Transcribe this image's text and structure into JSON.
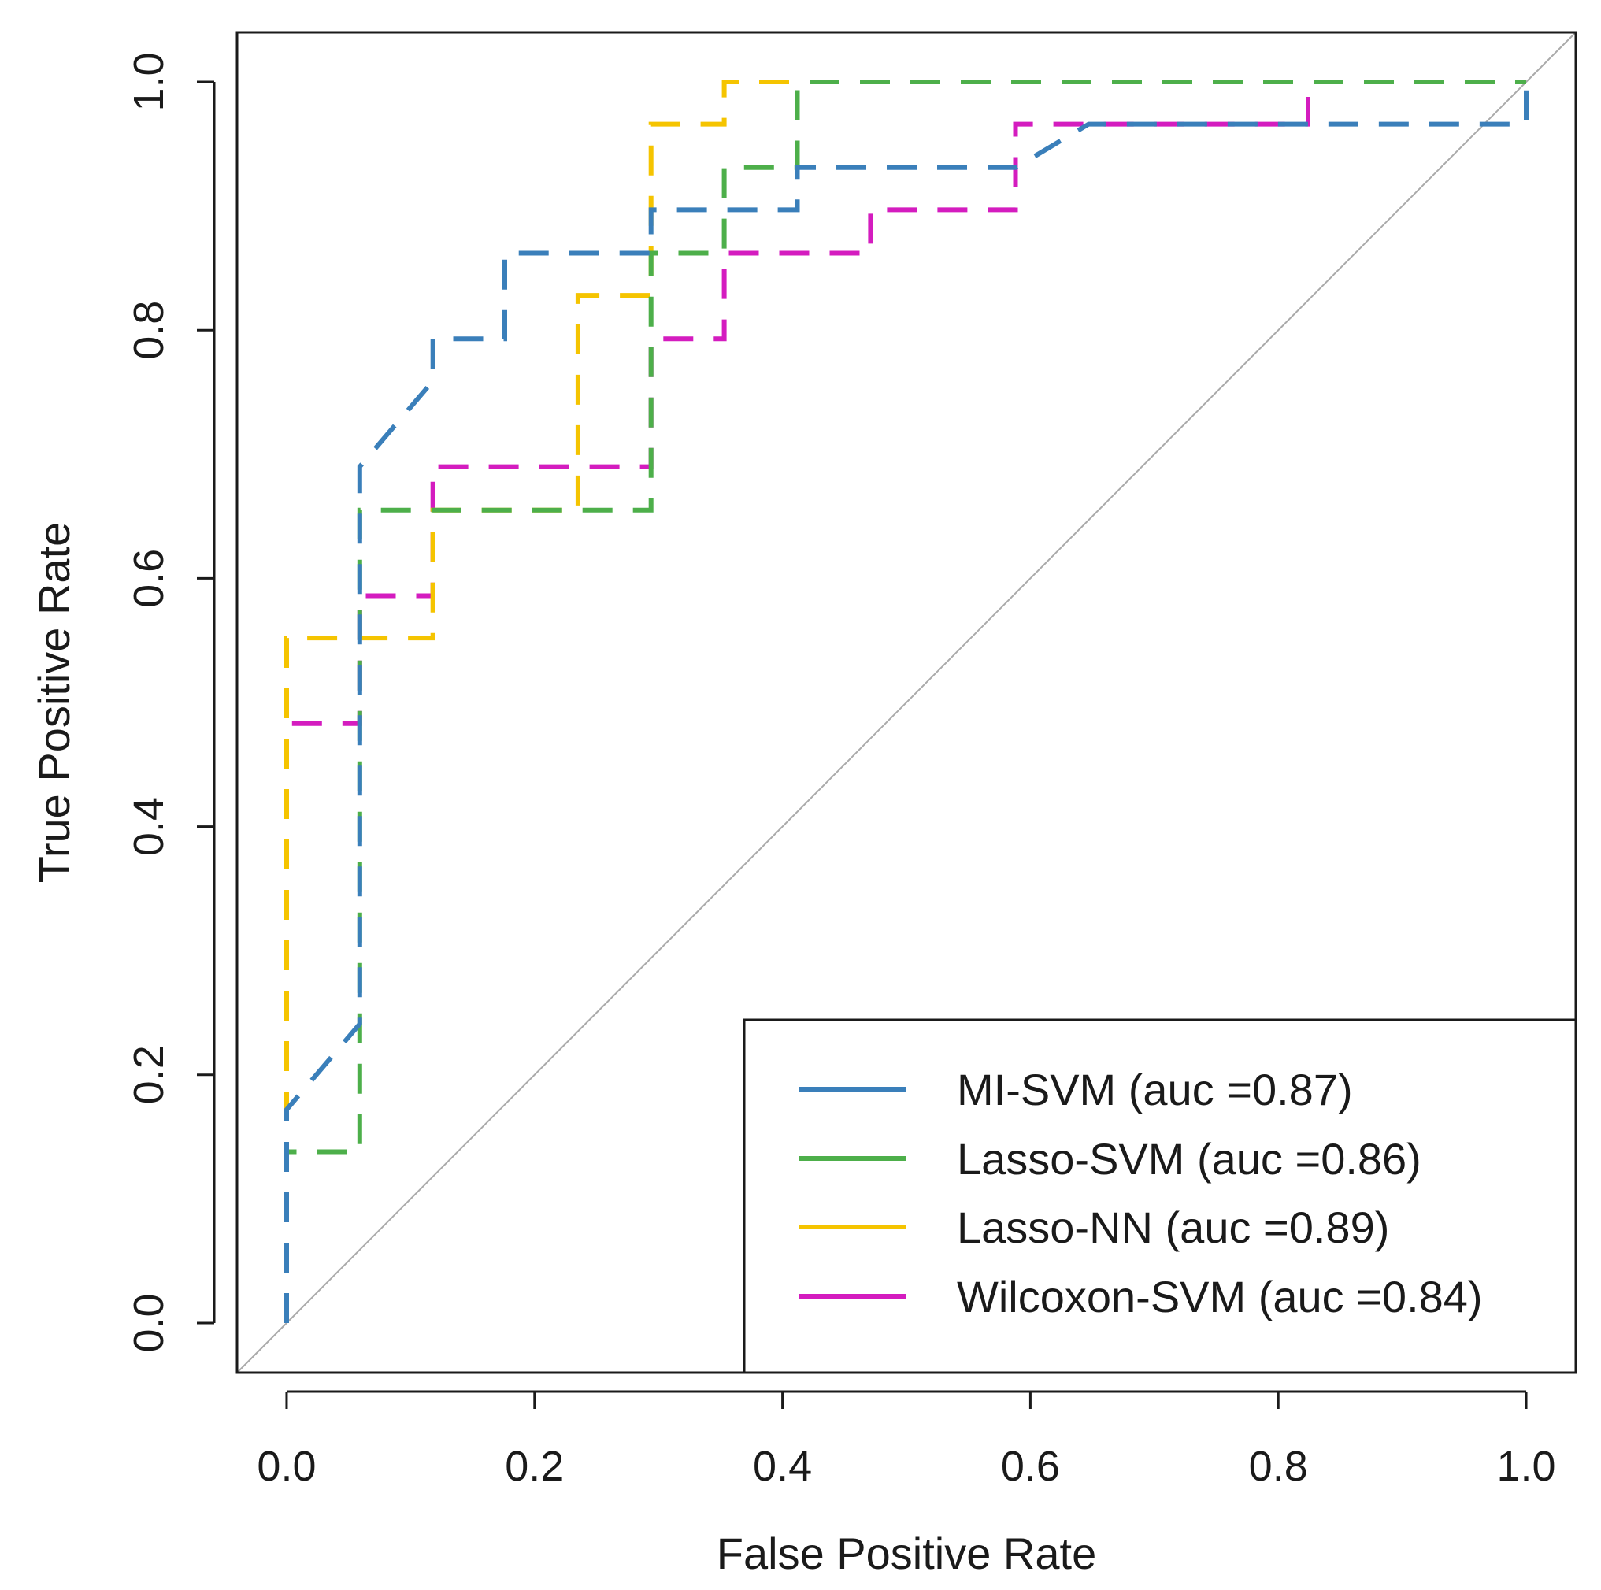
{
  "chart_data": {
    "type": "line",
    "title": "",
    "xlabel": "False Positive Rate",
    "ylabel": "True Positive Rate",
    "xlim": [
      -0.04,
      1.04
    ],
    "ylim": [
      -0.04,
      1.04
    ],
    "xticks": [
      0.0,
      0.2,
      0.4,
      0.6,
      0.8,
      1.0
    ],
    "yticks": [
      0.0,
      0.2,
      0.4,
      0.6,
      0.8,
      1.0
    ],
    "xtick_labels": [
      "0.0",
      "0.2",
      "0.4",
      "0.6",
      "0.8",
      "1.0"
    ],
    "ytick_labels": [
      "0.0",
      "0.2",
      "0.4",
      "0.6",
      "0.8",
      "1.0"
    ],
    "reference_line": {
      "x": [
        0,
        1
      ],
      "y": [
        0,
        1
      ],
      "color": "#aaaaaa"
    },
    "legend_position": "bottom-right",
    "series": [
      {
        "name": "MI-SVM (auc =0.87)",
        "color": "#3a7fba",
        "x": [
          0.0,
          0.0,
          0.059,
          0.059,
          0.118,
          0.118,
          0.176,
          0.176,
          0.294,
          0.294,
          0.412,
          0.412,
          0.588,
          0.647,
          1.0,
          1.0
        ],
        "y": [
          0.0,
          0.172,
          0.241,
          0.69,
          0.759,
          0.793,
          0.793,
          0.862,
          0.862,
          0.897,
          0.897,
          0.931,
          0.931,
          0.966,
          0.966,
          1.0
        ]
      },
      {
        "name": "Lasso-SVM (auc =0.86)",
        "color": "#4daf4a",
        "x": [
          0.0,
          0.0,
          0.059,
          0.059,
          0.118,
          0.118,
          0.294,
          0.294,
          0.353,
          0.353,
          0.412,
          0.412,
          1.0
        ],
        "y": [
          0.0,
          0.138,
          0.138,
          0.655,
          0.655,
          0.655,
          0.655,
          0.862,
          0.862,
          0.931,
          0.931,
          1.0,
          1.0
        ]
      },
      {
        "name": "Lasso-NN (auc =0.89)",
        "color": "#f5c400",
        "x": [
          0.0,
          0.0,
          0.118,
          0.118,
          0.235,
          0.235,
          0.294,
          0.294,
          0.353,
          0.353,
          1.0
        ],
        "y": [
          0.0,
          0.552,
          0.552,
          0.655,
          0.655,
          0.828,
          0.828,
          0.966,
          0.966,
          1.0,
          1.0
        ]
      },
      {
        "name": "Wilcoxon-SVM (auc =0.84)",
        "color": "#d41cbf",
        "x": [
          0.0,
          0.0,
          0.059,
          0.059,
          0.118,
          0.118,
          0.294,
          0.294,
          0.353,
          0.353,
          0.471,
          0.471,
          0.588,
          0.588,
          0.824,
          0.824,
          1.0
        ],
        "y": [
          0.0,
          0.483,
          0.483,
          0.586,
          0.586,
          0.69,
          0.69,
          0.793,
          0.793,
          0.862,
          0.862,
          0.897,
          0.897,
          0.966,
          0.966,
          1.0,
          1.0
        ]
      }
    ]
  }
}
